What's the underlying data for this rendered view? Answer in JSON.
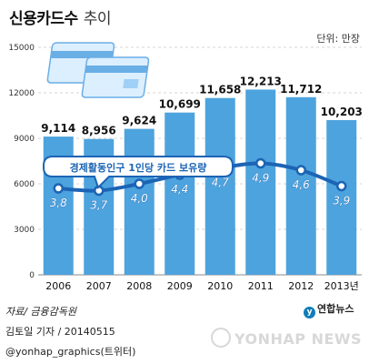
{
  "header": {
    "title": "신용카드수",
    "subtitle": "추이",
    "unit": "단위: 만장"
  },
  "chart_data": {
    "type": "bar",
    "categories": [
      "2006",
      "2007",
      "2008",
      "2009",
      "2010",
      "2011",
      "2012",
      "2013년"
    ],
    "series": [
      {
        "values": [
          9114,
          8956,
          9624,
          10699,
          11658,
          12213,
          11712,
          10203
        ]
      },
      {
        "name": "경제활동인구 1인당 카드 보유량",
        "values": [
          3.8,
          3.7,
          4.0,
          4.4,
          4.7,
          4.9,
          4.6,
          3.9
        ]
      }
    ],
    "bar_labels": [
      "9,114",
      "8,956",
      "9,624",
      "10,699",
      "11,658",
      "12,213",
      "11,712",
      "10,203"
    ],
    "line_labels": [
      "3,8",
      "3,7",
      "4,0",
      "4,4",
      "4,7",
      "4,9",
      "4,6",
      "3,9"
    ],
    "yticks": [
      0,
      3000,
      6000,
      9000,
      12000,
      15000
    ],
    "ylim": [
      0,
      15000
    ],
    "line_ylim": [
      0,
      10
    ],
    "grid": true,
    "colors": {
      "bar": "#4da3dd",
      "line": "#1c64b5",
      "point_fill": "#ffffff"
    }
  },
  "footer": {
    "source": "자료/ 금융감독원",
    "credit": "김토일 기자 / 20140515",
    "twitter": "@yonhap_graphics(트위터)",
    "agency": "연합뉴스",
    "watermark": "YONHAP NEWS"
  }
}
